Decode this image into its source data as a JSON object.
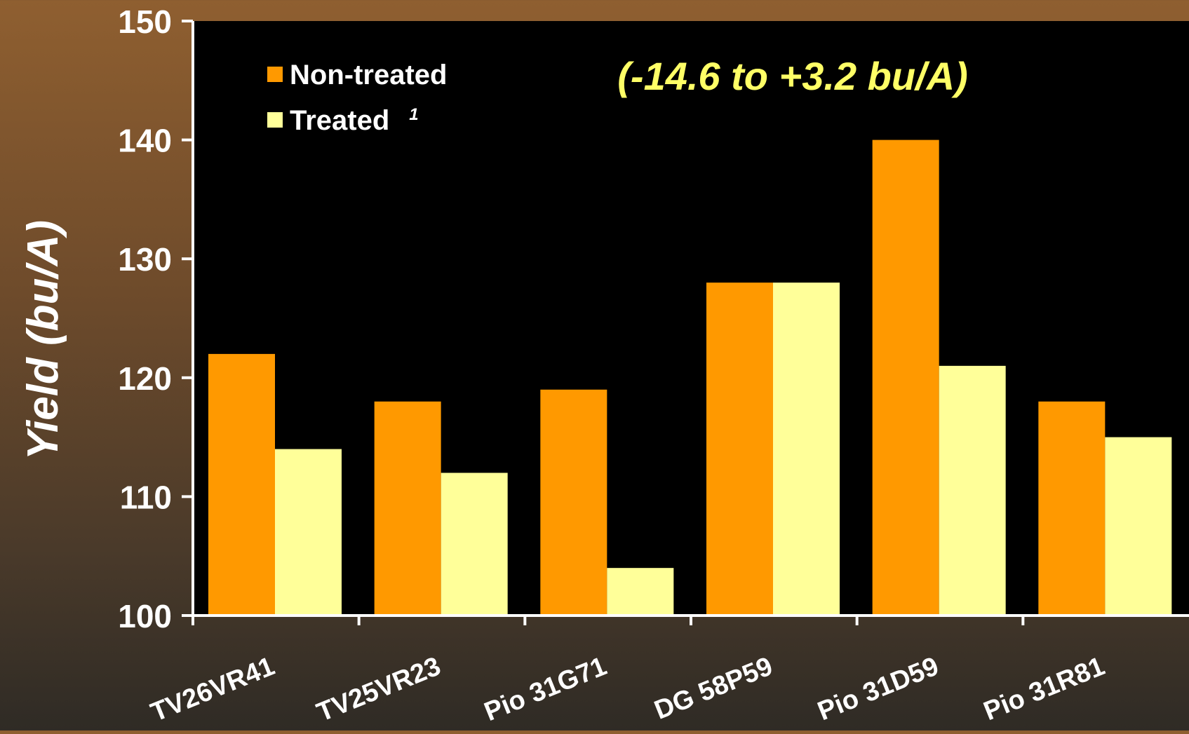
{
  "chart_data": {
    "type": "bar",
    "title": "",
    "annotation": "(-14.6 to +3.2 bu/A)",
    "xlabel": "",
    "ylabel": "Yield (bu/A)",
    "ylim": [
      100,
      150
    ],
    "yticks": [
      100,
      110,
      120,
      130,
      140,
      150
    ],
    "grid": false,
    "legend_position": "top-left",
    "categories": [
      "TV26VR41",
      "TV25VR23",
      "Pio 31G71",
      "DG 58P59",
      "Pio 31D59",
      "Pio 31R81"
    ],
    "series": [
      {
        "name": "Non-treated",
        "color": "#ff9900",
        "values": [
          122,
          118,
          119,
          128,
          140,
          118
        ]
      },
      {
        "name": "Treated",
        "superscript": "1",
        "color": "#ffff99",
        "values": [
          114,
          112,
          104,
          128,
          121,
          115
        ]
      }
    ]
  },
  "colors": {
    "plot_background": "#000000",
    "axis_text": "#ffffff",
    "annotation_text": "#ffff66"
  }
}
